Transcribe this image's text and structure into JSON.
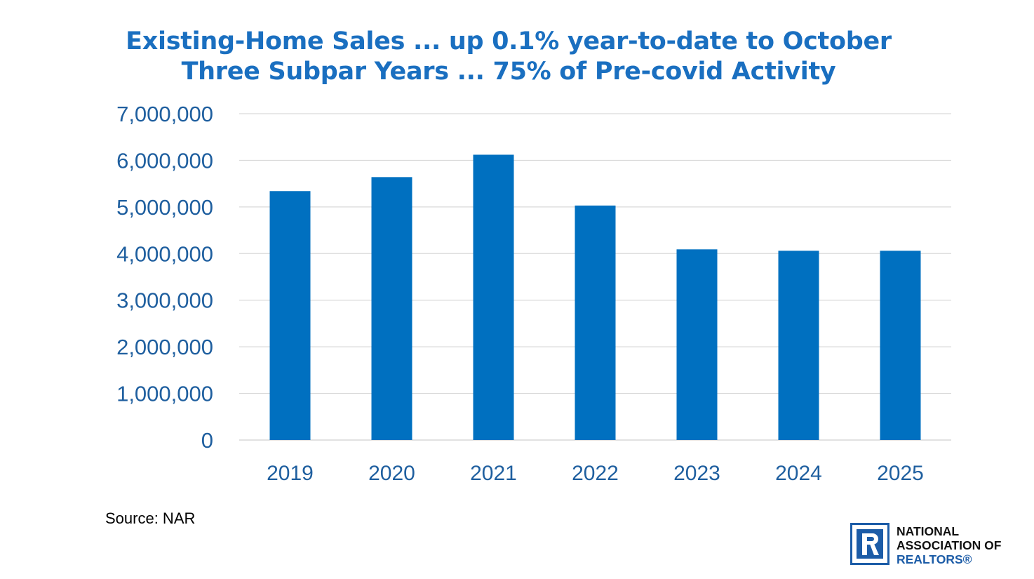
{
  "title_line1": "Existing-Home Sales ... up 0.1% year-to-date to October",
  "title_line2": "Three Subpar Years ... 75% of Pre-covid Activity",
  "source": "Source: NAR",
  "logo": {
    "icon": "realtor-r-logo",
    "line1": "NATIONAL",
    "line2": "ASSOCIATION OF",
    "line3": "REALTORS®"
  },
  "colors": {
    "bar": "#0070c0",
    "title": "#1a6fc0",
    "axis_text": "#1f5f9f",
    "grid": "#d9d9d9",
    "logo": "#1c5ca7"
  },
  "chart_data": {
    "type": "bar",
    "categories": [
      "2019",
      "2020",
      "2021",
      "2022",
      "2023",
      "2024",
      "2025"
    ],
    "values": [
      5340000,
      5640000,
      6120000,
      5030000,
      4090000,
      4060000,
      4060000
    ],
    "ylim": [
      0,
      7000000
    ],
    "yticks": [
      0,
      1000000,
      2000000,
      3000000,
      4000000,
      5000000,
      6000000,
      7000000
    ],
    "ytick_labels": [
      "0",
      "1,000,000",
      "2,000,000",
      "3,000,000",
      "4,000,000",
      "5,000,000",
      "6,000,000",
      "7,000,000"
    ],
    "grid": true,
    "legend": "none"
  }
}
